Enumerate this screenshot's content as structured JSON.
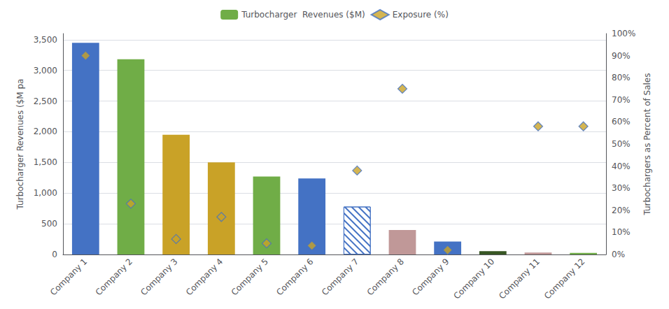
{
  "chart_data": {
    "type": "bar",
    "categories": [
      "Company 1",
      "Company 2",
      "Company 3",
      "Company 4",
      "Company 5",
      "Company 6",
      "Company 7",
      "Company 8",
      "Company 9",
      "Company 10",
      "Company 11",
      "Company 12"
    ],
    "series": [
      {
        "name": "Turbocharger  Revenues ($M)",
        "type": "bar",
        "color": "#70AD47",
        "colors": [
          "#4472C4",
          "#70AD47",
          "#C9A227",
          "#C9A227",
          "#70AD47",
          "#4472C4",
          "#FFFFFF",
          "#C09898",
          "#4472C4",
          "#375623",
          "#C09898",
          "#70AD47"
        ],
        "values": [
          3450,
          3180,
          1950,
          1500,
          1270,
          1240,
          780,
          400,
          210,
          55,
          30,
          25
        ]
      },
      {
        "name": "Exposure (%)",
        "type": "scatter",
        "marker": "diamond",
        "color": "#C9A227",
        "axis": "y2",
        "values": [
          0.9,
          0.23,
          0.07,
          0.17,
          0.05,
          0.04,
          0.38,
          0.75,
          0.02,
          null,
          0.58,
          0.58
        ]
      }
    ],
    "ylabel": "Turbocharger Revenues ($M pa",
    "y2label": "Turbochargers as Percent of Sales",
    "ylim": [
      0,
      3600
    ],
    "yticks": [
      0,
      500,
      {
        "value": 1000,
        "label": "1,000"
      },
      {
        "value": 1500,
        "label": "1,500"
      },
      {
        "value": 2000,
        "label": "2,000"
      },
      {
        "value": 2500,
        "label": "2,500"
      },
      {
        "value": 3000,
        "label": "3,000"
      },
      {
        "value": 3500,
        "label": "3,500"
      }
    ],
    "y2lim": [
      0,
      1.0
    ],
    "y2ticks": [
      {
        "value": 0.0,
        "label": "0%"
      },
      {
        "value": 0.1,
        "label": "10%"
      },
      {
        "value": 0.2,
        "label": "20%"
      },
      {
        "value": 0.3,
        "label": "30%"
      },
      {
        "value": 0.4,
        "label": "40%"
      },
      {
        "value": 0.5,
        "label": "50%"
      },
      {
        "value": 0.6,
        "label": "60%"
      },
      {
        "value": 0.7,
        "label": "70%"
      },
      {
        "value": 0.8,
        "label": "80%"
      },
      {
        "value": 0.9,
        "label": "90%"
      },
      {
        "value": 1.0,
        "label": "100%"
      }
    ],
    "grid": true,
    "legend": "top"
  }
}
